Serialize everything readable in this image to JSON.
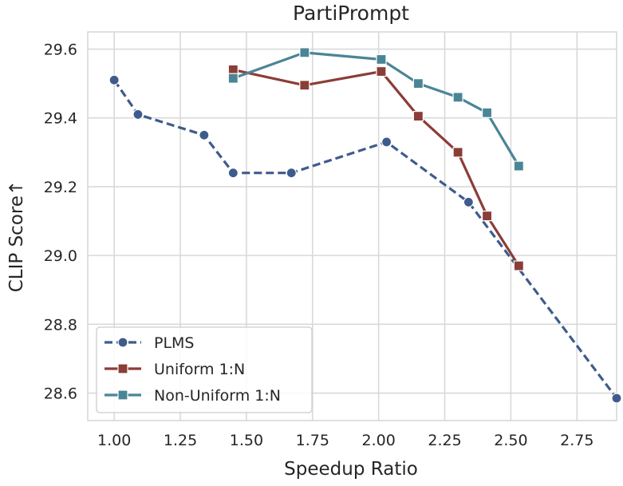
{
  "chart_data": {
    "type": "line",
    "title": "PartiPrompt",
    "xlabel": "Speedup Ratio",
    "ylabel": "CLIP Score↑",
    "xlim": [
      0.9,
      2.9
    ],
    "ylim": [
      28.52,
      29.65
    ],
    "xticks": [
      1.0,
      1.25,
      1.5,
      1.75,
      2.0,
      2.25,
      2.5,
      2.75
    ],
    "xtick_labels": [
      "1.00",
      "1.25",
      "1.50",
      "1.75",
      "2.00",
      "2.25",
      "2.50",
      "2.75"
    ],
    "yticks": [
      28.6,
      28.8,
      29.0,
      29.2,
      29.4,
      29.6
    ],
    "ytick_labels": [
      "28.6",
      "28.8",
      "29.0",
      "29.2",
      "29.4",
      "29.6"
    ],
    "grid": true,
    "legend_position": "bottom-left",
    "series": [
      {
        "name": "PLMS",
        "color": "#3f5b8c",
        "marker": "circle",
        "linestyle": "dashed",
        "x": [
          1.0,
          1.09,
          1.34,
          1.45,
          1.67,
          2.03,
          2.34,
          2.9
        ],
        "y": [
          29.51,
          29.41,
          29.35,
          29.24,
          29.24,
          29.33,
          29.155,
          28.585
        ]
      },
      {
        "name": "Uniform 1:N",
        "color": "#8b3d37",
        "marker": "square",
        "linestyle": "solid",
        "x": [
          1.45,
          1.72,
          2.01,
          2.15,
          2.3,
          2.41,
          2.53
        ],
        "y": [
          29.54,
          29.495,
          29.535,
          29.405,
          29.3,
          29.115,
          28.97
        ]
      },
      {
        "name": "Non-Uniform 1:N",
        "color": "#4a8596",
        "marker": "square",
        "linestyle": "solid",
        "x": [
          1.45,
          1.72,
          2.01,
          2.15,
          2.3,
          2.41,
          2.53
        ],
        "y": [
          29.515,
          29.59,
          29.57,
          29.5,
          29.46,
          29.415,
          29.26
        ]
      }
    ]
  }
}
